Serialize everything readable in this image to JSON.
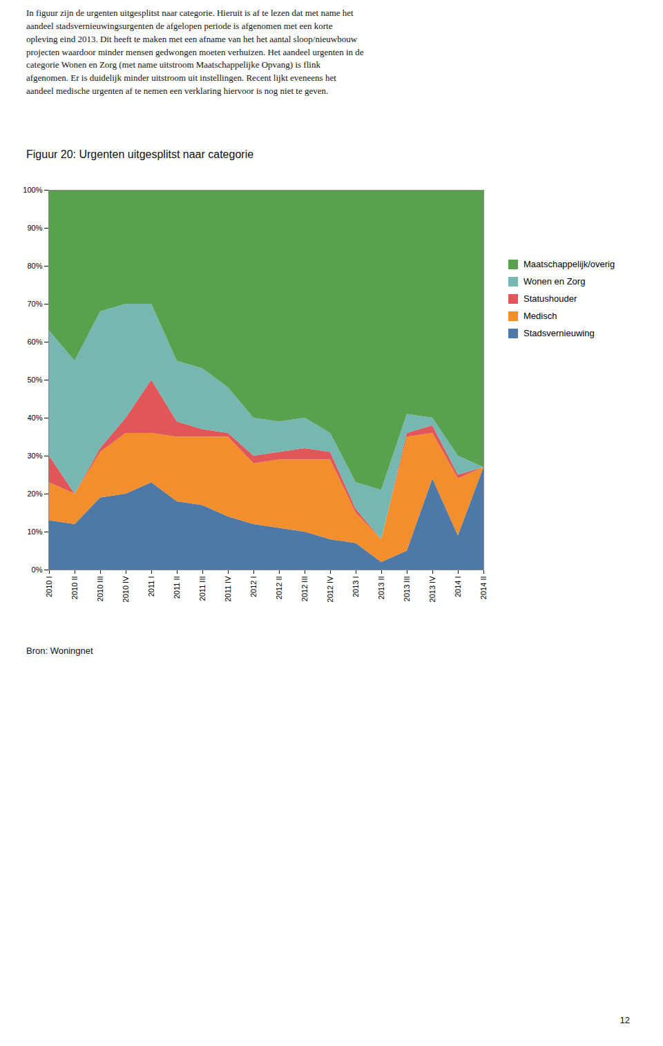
{
  "chart_data": {
    "type": "area",
    "stacked": true,
    "grid": true,
    "legend": "right",
    "title": "Figuur 20: Urgenten uitgesplitst naar categorie",
    "body_text": "In figuur zijn de urgenten uitgesplitst naar categorie. Hieruit is af te lezen dat met name het\naandeel stadsvernieuwingsurgenten de afgelopen periode is afgenomen met een korte\nopleving eind 2013. Dit heeft te maken met een afname van het het aantal sloop/nieuwbouw\nprojecten waardoor minder mensen gedwongen moeten verhuizen. Het aandeel urgenten in de\ncategorie Wonen en Zorg (met name uitstroom Maatschappelijke Opvang) is flink\nafgenomen. Er is duidelijk minder uitstroom uit instellingen. Recent lijkt eveneens het\naandeel medische urgenten af te nemen een verklaring hiervoor is nog niet te geven.",
    "source": "Bron: Woningnet",
    "page_number": "12",
    "categories": [
      "2010 I",
      "2010 II",
      "2010 III",
      "2010 IV",
      "2011 I",
      "2011 II",
      "2011 III",
      "2011 IV",
      "2012 I",
      "2012 II",
      "2012 III",
      "2012 IV",
      "2013 I",
      "2013 II",
      "2013 III",
      "2013 IV",
      "2014 I",
      "2014 II"
    ],
    "series": [
      {
        "name": "Stadsvernieuwing",
        "values": [
          0.13,
          0.12,
          0.19,
          0.2,
          0.23,
          0.18,
          0.17,
          0.14,
          0.12,
          0.11,
          0.1,
          0.08,
          0.07,
          0.02,
          0.05,
          0.24,
          0.09,
          0.27
        ]
      },
      {
        "name": "Medisch",
        "values": [
          0.1,
          0.08,
          0.12,
          0.16,
          0.13,
          0.17,
          0.18,
          0.21,
          0.16,
          0.18,
          0.19,
          0.21,
          0.08,
          0.06,
          0.3,
          0.12,
          0.15,
          0.0
        ]
      },
      {
        "name": "Statushouder",
        "values": [
          0.07,
          0.0,
          0.01,
          0.04,
          0.14,
          0.04,
          0.02,
          0.01,
          0.02,
          0.02,
          0.03,
          0.02,
          0.01,
          0.0,
          0.01,
          0.02,
          0.01,
          0.0
        ]
      },
      {
        "name": "Wonen en Zorg",
        "values": [
          0.33,
          0.35,
          0.36,
          0.3,
          0.2,
          0.16,
          0.16,
          0.12,
          0.1,
          0.08,
          0.08,
          0.05,
          0.07,
          0.13,
          0.05,
          0.02,
          0.05,
          0.0
        ]
      },
      {
        "name": "Maatschappelijk/overig",
        "values": [
          0.37,
          0.45,
          0.32,
          0.3,
          0.3,
          0.45,
          0.47,
          0.52,
          0.6,
          0.61,
          0.6,
          0.64,
          0.77,
          0.79,
          0.59,
          0.6,
          0.7,
          0.73
        ]
      }
    ],
    "ylim": [
      0,
      1.0
    ],
    "yticks": [
      {
        "value": 0.0,
        "label": "0%"
      },
      {
        "value": 0.1,
        "label": "10%"
      },
      {
        "value": 0.2,
        "label": "20%"
      },
      {
        "value": 0.3,
        "label": "30%"
      },
      {
        "value": 0.4,
        "label": "40%"
      },
      {
        "value": 0.5,
        "label": "50%"
      },
      {
        "value": 0.6,
        "label": "60%"
      },
      {
        "value": 0.7,
        "label": "70%"
      },
      {
        "value": 0.8,
        "label": "80%"
      },
      {
        "value": 0.9,
        "label": "90%"
      },
      {
        "value": 1.0,
        "label": "100%"
      }
    ]
  }
}
